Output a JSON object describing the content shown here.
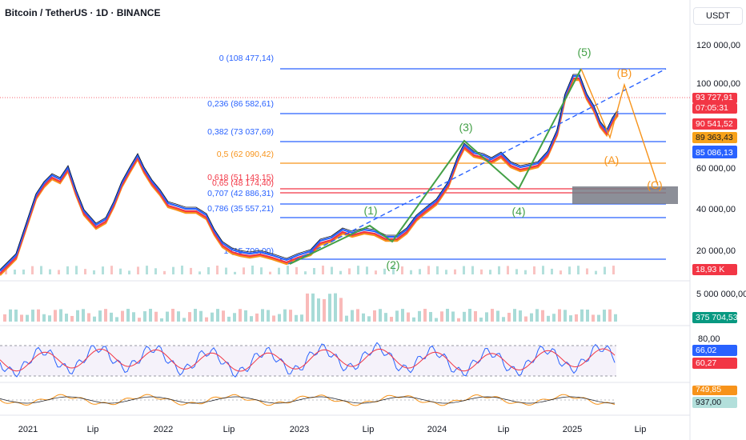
{
  "header": {
    "title": "Bitcoin / TetherUS · 1D · BINANCE",
    "currency": "USDT"
  },
  "chart_data": [
    {
      "type": "line",
      "panel": "price",
      "y_axis_ticks": [
        "120 000,00",
        "100 000,00",
        "60 000,00",
        "40 000,00",
        "20 000,00"
      ],
      "y_tick_values": [
        120000,
        100000,
        60000,
        40000,
        20000
      ],
      "x_axis_ticks": [
        "2021",
        "Lip",
        "2022",
        "Lip",
        "2023",
        "Lip",
        "2024",
        "Lip",
        "2025",
        "Lip"
      ],
      "price_tags": [
        {
          "text": "93 727,91",
          "color": "#f23645"
        },
        {
          "text": "07:05:31",
          "color": "#f23645"
        },
        {
          "text": "90 541,52",
          "color": "#f23645"
        },
        {
          "text": "89 363,43",
          "color": "#f7a21b"
        },
        {
          "text": "85 086,13",
          "color": "#2962ff"
        },
        {
          "text": "18,93 K",
          "color": "#f23645"
        }
      ],
      "fibonacci_levels": [
        {
          "label": "0 (108 477,14)",
          "value": 108477.14,
          "color": "#2962ff"
        },
        {
          "label": "0,236 (86 582,61)",
          "value": 86582.61,
          "color": "#2962ff"
        },
        {
          "label": "0,382 (73 037,69)",
          "value": 73037.69,
          "color": "#2962ff"
        },
        {
          "label": "0,5 (62 090,42)",
          "value": 62090.42,
          "color": "#f7931a"
        },
        {
          "label": "0,618 (51 143,15)",
          "value": 51143.15,
          "color": "#f23645"
        },
        {
          "label": "0,65 (48 174,40)",
          "value": 48174.4,
          "color": "#f23645"
        },
        {
          "label": "0,707 (42 886,31)",
          "value": 42886.31,
          "color": "#2962ff"
        },
        {
          "label": "0,786 (35 557,21)",
          "value": 35557.21,
          "color": "#2962ff"
        },
        {
          "label": "1 (15 700,00)",
          "value": 15700.0,
          "color": "#2962ff"
        }
      ],
      "wave_labels": [
        {
          "text": "(1)",
          "color": "#43a047"
        },
        {
          "text": "(2)",
          "color": "#43a047"
        },
        {
          "text": "(3)",
          "color": "#43a047"
        },
        {
          "text": "(4)",
          "color": "#43a047"
        },
        {
          "text": "(5)",
          "color": "#43a047"
        },
        {
          "text": "(A)",
          "color": "#f7931a"
        },
        {
          "text": "(B)",
          "color": "#f7931a"
        },
        {
          "text": "(C)",
          "color": "#f7931a"
        }
      ],
      "series": [
        {
          "color": "#131722"
        },
        {
          "color": "#2962ff"
        },
        {
          "color": "#f23645"
        },
        {
          "color": "#f7931a"
        }
      ]
    },
    {
      "type": "bar",
      "panel": "volume",
      "y_axis_ticks": [
        "5 000 000,00"
      ],
      "price_tags": [
        {
          "text": "375 704,53",
          "color": "#089981"
        }
      ]
    },
    {
      "type": "line",
      "panel": "rsi",
      "y_axis_ticks": [
        "80,00"
      ],
      "price_tags": [
        {
          "text": "66,02",
          "color": "#2962ff"
        },
        {
          "text": "60,27",
          "color": "#f23645"
        }
      ]
    },
    {
      "type": "line",
      "panel": "oscillator",
      "price_tags": [
        {
          "text": "749,85",
          "color": "#f7931a"
        },
        {
          "text": "937,00",
          "color": "#b2dfdb"
        }
      ]
    }
  ]
}
